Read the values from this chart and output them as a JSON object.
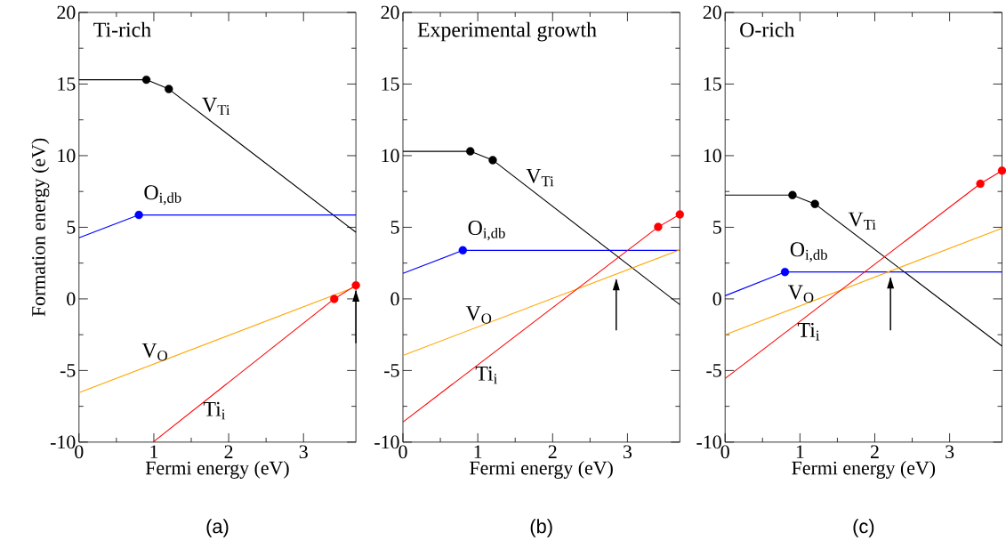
{
  "chart_data": [
    {
      "type": "line",
      "title": "Ti-rich",
      "xlabel": "Fermi energy (eV)",
      "ylabel": "Formation energy (eV)",
      "annotations": [
        "(a)"
      ],
      "xlim": [
        0,
        3.7
      ],
      "ylim": [
        -10,
        20
      ],
      "xticks": [
        0,
        1,
        2,
        3
      ],
      "yticks": [
        -10,
        -5,
        0,
        5,
        10,
        15,
        20
      ],
      "marker": "none",
      "series": [
        {
          "name": "V$_{Ti}$",
          "color": "#000000",
          "x": [
            0,
            0.9,
            1.2,
            3.7
          ],
          "values": [
            15.3,
            15.3,
            14.65,
            4.65
          ]
        },
        {
          "name": "O$_{i,db}$",
          "color": "#0000ff",
          "x": [
            0,
            0.8,
            3.7
          ],
          "values": [
            4.27,
            5.86,
            5.86
          ]
        },
        {
          "name": "V$_{O}$",
          "color": "#ffa500",
          "x": [
            0,
            3.7
          ],
          "values": [
            -6.55,
            0.85
          ]
        },
        {
          "name": "Ti$_{i}$",
          "color": "#ff0000",
          "x": [
            0.99,
            3.41,
            3.7
          ],
          "values": [
            -10,
            0,
            0.95
          ]
        },
        {
          "type": "scatter",
          "marker": "circle",
          "color": "#000000",
          "x": [
            0.9,
            1.2
          ],
          "values": [
            15.3,
            14.65
          ]
        },
        {
          "type": "scatter",
          "marker": "circle",
          "color": "#0000ff",
          "x": [
            0.8
          ],
          "values": [
            5.86
          ]
        },
        {
          "type": "scatter",
          "marker": "circle",
          "color": "#ff0000",
          "x": [
            3.41,
            3.7
          ],
          "values": [
            0,
            0.95
          ]
        },
        {
          "type": "line",
          "color": "#000000",
          "x": [
            3.7,
            3.7
          ],
          "values": [
            -3.1,
            0.55
          ]
        }
      ]
    },
    {
      "type": "line",
      "title": "Experimental growth",
      "xlabel": "Fermi energy (eV)",
      "annotations": [
        "(b)"
      ],
      "xlim": [
        0,
        3.7
      ],
      "ylim": [
        -10,
        20
      ],
      "xticks": [
        0,
        1,
        2,
        3
      ],
      "yticks": [
        -10,
        -5,
        0,
        5,
        10,
        15,
        20
      ],
      "marker": "none",
      "series": [
        {
          "name": "V$_{Ti}$",
          "color": "#000000",
          "x": [
            0,
            0.9,
            1.2,
            3.7
          ],
          "values": [
            10.3,
            10.3,
            9.69,
            -0.4
          ]
        },
        {
          "name": "O$_{i,db}$",
          "color": "#0000ff",
          "x": [
            0,
            0.8,
            3.7
          ],
          "values": [
            1.78,
            3.39,
            3.39
          ]
        },
        {
          "name": "V$_{O}$",
          "color": "#ffa500",
          "x": [
            0,
            3.7
          ],
          "values": [
            -3.95,
            3.43
          ]
        },
        {
          "name": "Ti$_{i}$",
          "color": "#ff0000",
          "x": [
            0,
            3.41,
            3.7
          ],
          "values": [
            -8.6,
            5.02,
            5.9
          ]
        },
        {
          "type": "scatter",
          "marker": "circle",
          "color": "#000000",
          "x": [
            0.9,
            1.2
          ],
          "values": [
            10.3,
            9.69
          ]
        },
        {
          "type": "scatter",
          "marker": "circle",
          "color": "#0000ff",
          "x": [
            0.8
          ],
          "values": [
            3.39
          ]
        },
        {
          "type": "scatter",
          "marker": "circle",
          "color": "#ff0000",
          "x": [
            3.41,
            3.7
          ],
          "values": [
            5.02,
            5.9
          ]
        },
        {
          "type": "line",
          "color": "#000000",
          "x": [
            2.85,
            2.85
          ],
          "values": [
            -2.2,
            1.35
          ]
        }
      ]
    },
    {
      "type": "line",
      "title": "O-rich",
      "xlabel": "Fermi energy (eV)",
      "annotations": [
        "(c)"
      ],
      "xlim": [
        0,
        3.7
      ],
      "ylim": [
        -10,
        20
      ],
      "xticks": [
        0,
        1,
        2,
        3
      ],
      "yticks": [
        -10,
        -5,
        0,
        5,
        10,
        15,
        20
      ],
      "marker": "none",
      "series": [
        {
          "name": "V$_{Ti}$",
          "color": "#000000",
          "x": [
            0,
            0.9,
            1.2,
            3.7
          ],
          "values": [
            7.25,
            7.25,
            6.63,
            -3.3
          ]
        },
        {
          "name": "O$_{i,db}$",
          "color": "#0000ff",
          "x": [
            0,
            0.8,
            3.7
          ],
          "values": [
            0.22,
            1.88,
            1.88
          ]
        },
        {
          "name": "V$_{O}$",
          "color": "#ffa500",
          "x": [
            0,
            3.7
          ],
          "values": [
            -2.5,
            4.94
          ]
        },
        {
          "name": "Ti$_{i}$",
          "color": "#ff0000",
          "x": [
            0,
            3.41,
            3.7
          ],
          "values": [
            -5.56,
            8.04,
            8.95
          ]
        },
        {
          "type": "scatter",
          "marker": "circle",
          "color": "#000000",
          "x": [
            0.9,
            1.2
          ],
          "values": [
            7.25,
            6.63
          ]
        },
        {
          "type": "scatter",
          "marker": "circle",
          "color": "#0000ff",
          "x": [
            0.8
          ],
          "values": [
            1.88
          ]
        },
        {
          "type": "scatter",
          "marker": "circle",
          "color": "#ff0000",
          "x": [
            3.41,
            3.7
          ],
          "values": [
            8.04,
            8.95
          ]
        },
        {
          "type": "line",
          "color": "#000000",
          "x": [
            2.21,
            2.21
          ],
          "values": [
            -2.2,
            1.47
          ]
        }
      ]
    }
  ]
}
